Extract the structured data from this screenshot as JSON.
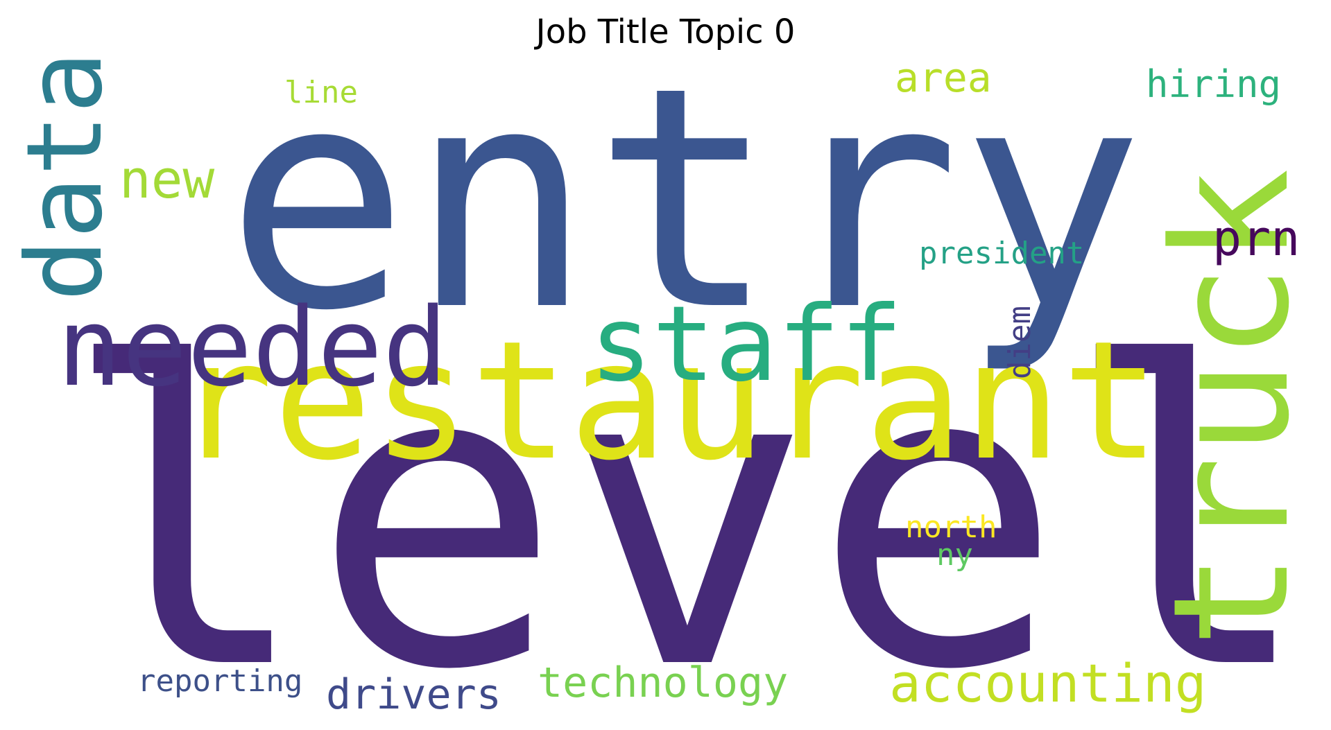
{
  "title": "Job Title Topic 0",
  "words": [
    {
      "text": "entry",
      "color": "#3b5690"
    },
    {
      "text": "level",
      "color": "#462a78"
    },
    {
      "text": "restaurant",
      "color": "#dfe318"
    },
    {
      "text": "truck",
      "color": "#9ad93a"
    },
    {
      "text": "data",
      "color": "#2c7d8f"
    },
    {
      "text": "needed",
      "color": "#463480"
    },
    {
      "text": "staff",
      "color": "#27ad80"
    },
    {
      "text": "new",
      "color": "#a3da37"
    },
    {
      "text": "area",
      "color": "#b8de29"
    },
    {
      "text": "hiring",
      "color": "#2db27d"
    },
    {
      "text": "prn",
      "color": "#46085c"
    },
    {
      "text": "line",
      "color": "#a7db35"
    },
    {
      "text": "president",
      "color": "#24a186"
    },
    {
      "text": "diem",
      "color": "#433e85"
    },
    {
      "text": "accounting",
      "color": "#c2df23"
    },
    {
      "text": "technology",
      "color": "#79d151"
    },
    {
      "text": "drivers",
      "color": "#3f4a8a"
    },
    {
      "text": "reporting",
      "color": "#3d5089"
    },
    {
      "text": "north",
      "color": "#fbe723"
    },
    {
      "text": "ny",
      "color": "#5ec962"
    }
  ]
}
